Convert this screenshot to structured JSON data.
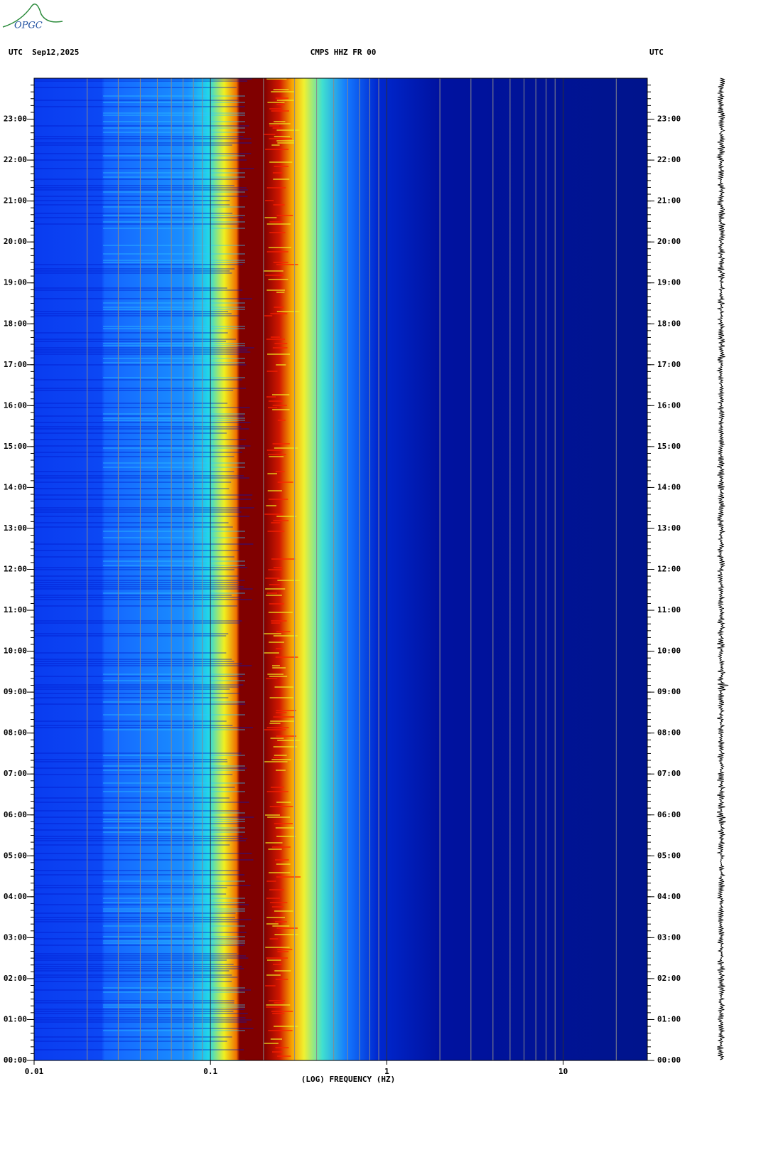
{
  "logo": "OPGC",
  "chart_data": {
    "type": "spectrogram",
    "header_left": "UTC  Sep12,2025",
    "title": "CMPS HHZ FR 00",
    "header_right": "UTC",
    "xlabel": "(LOG) FREQUENCY (HZ)",
    "xscale": "log",
    "xlim": [
      0.01,
      30
    ],
    "xticks": [
      0.01,
      0.1,
      1,
      10
    ],
    "ylim": [
      0,
      24
    ],
    "yticks": [
      {
        "value": 0,
        "label": "00:00"
      },
      {
        "value": 1,
        "label": "01:00"
      },
      {
        "value": 2,
        "label": "02:00"
      },
      {
        "value": 3,
        "label": "03:00"
      },
      {
        "value": 4,
        "label": "04:00"
      },
      {
        "value": 5,
        "label": "05:00"
      },
      {
        "value": 6,
        "label": "06:00"
      },
      {
        "value": 7,
        "label": "07:00"
      },
      {
        "value": 8,
        "label": "08:00"
      },
      {
        "value": 9,
        "label": "09:00"
      },
      {
        "value": 10,
        "label": "10:00"
      },
      {
        "value": 11,
        "label": "11:00"
      },
      {
        "value": 12,
        "label": "12:00"
      },
      {
        "value": 13,
        "label": "13:00"
      },
      {
        "value": 14,
        "label": "14:00"
      },
      {
        "value": 15,
        "label": "15:00"
      },
      {
        "value": 16,
        "label": "16:00"
      },
      {
        "value": 17,
        "label": "17:00"
      },
      {
        "value": 18,
        "label": "18:00"
      },
      {
        "value": 19,
        "label": "19:00"
      },
      {
        "value": 20,
        "label": "20:00"
      },
      {
        "value": 21,
        "label": "21:00"
      },
      {
        "value": 22,
        "label": "22:00"
      },
      {
        "value": 23,
        "label": "23:00"
      }
    ],
    "grid": true
  }
}
